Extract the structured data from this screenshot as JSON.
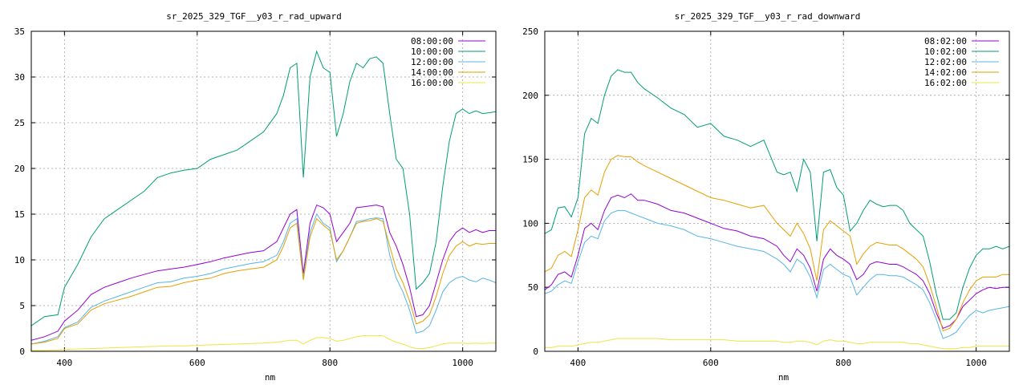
{
  "chart_data": [
    {
      "type": "line",
      "title": "sr_2025_329_TGF__y03_r_rad_upward",
      "xlabel": "nm",
      "ylabel": "",
      "xlim": [
        350,
        1050
      ],
      "ylim": [
        0,
        35
      ],
      "xticks": [
        400,
        600,
        800,
        1000
      ],
      "yticks": [
        0,
        5,
        10,
        15,
        20,
        25,
        30,
        35
      ],
      "grid": true,
      "legend_position": "top-right",
      "x": [
        350,
        370,
        390,
        400,
        420,
        440,
        460,
        480,
        500,
        520,
        540,
        560,
        580,
        600,
        620,
        640,
        660,
        680,
        700,
        720,
        730,
        740,
        750,
        760,
        770,
        780,
        790,
        800,
        810,
        820,
        830,
        840,
        850,
        860,
        870,
        880,
        890,
        900,
        910,
        920,
        930,
        940,
        950,
        960,
        970,
        980,
        990,
        1000,
        1010,
        1020,
        1030,
        1040,
        1050
      ],
      "series": [
        {
          "name": "08:00:00",
          "color": "#9400d3",
          "values": [
            1.2,
            1.6,
            2.2,
            3.3,
            4.5,
            6.2,
            7.0,
            7.5,
            8.0,
            8.4,
            8.8,
            9.0,
            9.2,
            9.5,
            9.8,
            10.2,
            10.5,
            10.8,
            11.0,
            12.0,
            13.5,
            15.0,
            15.5,
            8.5,
            14.0,
            16.0,
            15.7,
            15.0,
            12.0,
            13.0,
            14.0,
            15.7,
            15.8,
            15.9,
            16.0,
            15.8,
            13.0,
            11.5,
            9.5,
            7.0,
            3.8,
            4.0,
            5.0,
            7.5,
            10.0,
            12.0,
            13.0,
            13.5,
            13.0,
            13.3,
            13.0,
            13.2,
            13.2
          ]
        },
        {
          "name": "10:00:00",
          "color": "#009e73",
          "values": [
            2.8,
            3.8,
            4.0,
            7.0,
            9.5,
            12.5,
            14.5,
            15.5,
            16.5,
            17.5,
            19.0,
            19.5,
            19.8,
            20.0,
            21.0,
            21.5,
            22.0,
            23.0,
            24.0,
            26.0,
            28.0,
            31.0,
            31.5,
            19.0,
            30.0,
            32.8,
            31.0,
            30.5,
            23.5,
            26.0,
            29.5,
            31.5,
            31.0,
            32.0,
            32.2,
            31.5,
            26.0,
            21.0,
            20.0,
            15.0,
            6.8,
            7.5,
            8.5,
            12.0,
            18.0,
            23.0,
            26.0,
            26.5,
            26.0,
            26.3,
            26.0,
            26.1,
            26.2
          ]
        },
        {
          "name": "12:00:00",
          "color": "#56b4e9",
          "values": [
            0.8,
            1.1,
            1.6,
            2.6,
            3.2,
            4.8,
            5.5,
            6.0,
            6.5,
            7.0,
            7.5,
            7.6,
            8.0,
            8.2,
            8.5,
            9.0,
            9.3,
            9.6,
            9.8,
            10.5,
            12.0,
            14.0,
            14.5,
            8.0,
            13.0,
            15.0,
            14.0,
            13.5,
            9.8,
            11.0,
            12.5,
            14.2,
            14.3,
            14.5,
            14.6,
            14.5,
            10.5,
            8.0,
            6.5,
            4.5,
            2.0,
            2.2,
            2.8,
            4.5,
            6.5,
            7.5,
            8.0,
            8.2,
            7.8,
            7.6,
            8.0,
            7.8,
            7.5
          ]
        },
        {
          "name": "14:00:00",
          "color": "#e69f00",
          "values": [
            0.8,
            1.0,
            1.4,
            2.5,
            3.0,
            4.5,
            5.2,
            5.6,
            6.0,
            6.5,
            7.0,
            7.1,
            7.5,
            7.8,
            8.0,
            8.5,
            8.8,
            9.0,
            9.2,
            10.0,
            11.5,
            13.5,
            14.0,
            7.8,
            12.5,
            14.5,
            13.8,
            13.2,
            10.0,
            11.0,
            12.5,
            14.0,
            14.2,
            14.3,
            14.5,
            14.2,
            11.5,
            9.0,
            7.5,
            5.5,
            3.0,
            3.3,
            4.0,
            6.0,
            8.5,
            10.5,
            11.5,
            12.0,
            11.5,
            11.8,
            11.7,
            11.8,
            11.8
          ]
        },
        {
          "name": "16:00:00",
          "color": "#f0e442",
          "values": [
            0.1,
            0.1,
            0.15,
            0.2,
            0.25,
            0.3,
            0.35,
            0.4,
            0.45,
            0.5,
            0.55,
            0.6,
            0.6,
            0.65,
            0.7,
            0.75,
            0.8,
            0.85,
            0.9,
            1.0,
            1.1,
            1.2,
            1.2,
            0.8,
            1.2,
            1.5,
            1.5,
            1.4,
            1.1,
            1.2,
            1.4,
            1.6,
            1.7,
            1.7,
            1.7,
            1.7,
            1.3,
            1.0,
            0.8,
            0.5,
            0.3,
            0.3,
            0.4,
            0.6,
            0.8,
            0.9,
            0.9,
            0.9,
            0.85,
            0.9,
            0.85,
            0.9,
            0.9
          ]
        }
      ]
    },
    {
      "type": "line",
      "title": "sr_2025_329_TGF__y03_r_rad_downward",
      "xlabel": "nm",
      "ylabel": "",
      "xlim": [
        350,
        1050
      ],
      "ylim": [
        0,
        250
      ],
      "xticks": [
        400,
        600,
        800,
        1000
      ],
      "yticks": [
        0,
        50,
        100,
        150,
        200,
        250
      ],
      "grid": true,
      "legend_position": "top-right",
      "x": [
        350,
        360,
        370,
        380,
        390,
        400,
        410,
        420,
        430,
        440,
        450,
        460,
        470,
        480,
        490,
        500,
        520,
        540,
        560,
        580,
        600,
        620,
        640,
        660,
        680,
        700,
        710,
        720,
        730,
        740,
        750,
        760,
        770,
        780,
        790,
        800,
        810,
        820,
        830,
        840,
        850,
        860,
        870,
        880,
        890,
        900,
        910,
        920,
        930,
        940,
        950,
        960,
        970,
        980,
        990,
        1000,
        1010,
        1020,
        1030,
        1040,
        1050
      ],
      "series": [
        {
          "name": "08:02:00",
          "color": "#9400d3",
          "values": [
            48,
            52,
            60,
            62,
            58,
            75,
            96,
            100,
            95,
            110,
            120,
            122,
            120,
            123,
            118,
            118,
            115,
            110,
            108,
            104,
            100,
            96,
            94,
            90,
            88,
            82,
            75,
            70,
            80,
            75,
            65,
            47,
            72,
            80,
            75,
            72,
            68,
            56,
            60,
            68,
            70,
            69,
            68,
            68,
            66,
            63,
            60,
            55,
            45,
            30,
            18,
            20,
            25,
            35,
            40,
            45,
            48,
            50,
            49,
            50,
            50
          ]
        },
        {
          "name": "10:02:00",
          "color": "#009e73",
          "values": [
            92,
            95,
            112,
            113,
            105,
            120,
            170,
            182,
            178,
            200,
            215,
            220,
            218,
            218,
            210,
            205,
            198,
            190,
            185,
            175,
            178,
            168,
            165,
            160,
            165,
            140,
            138,
            140,
            125,
            150,
            140,
            86,
            140,
            142,
            128,
            122,
            94,
            100,
            110,
            118,
            115,
            113,
            114,
            114,
            110,
            100,
            95,
            90,
            70,
            45,
            25,
            25,
            30,
            50,
            65,
            75,
            80,
            80,
            82,
            80,
            82
          ]
        },
        {
          "name": "12:02:00",
          "color": "#56b4e9",
          "values": [
            45,
            47,
            52,
            55,
            53,
            70,
            85,
            90,
            88,
            102,
            108,
            110,
            110,
            108,
            106,
            104,
            100,
            98,
            95,
            90,
            88,
            85,
            82,
            80,
            78,
            72,
            68,
            62,
            72,
            68,
            58,
            42,
            64,
            68,
            64,
            60,
            58,
            44,
            50,
            56,
            60,
            60,
            59,
            59,
            58,
            55,
            52,
            48,
            38,
            25,
            10,
            12,
            15,
            22,
            28,
            32,
            30,
            32,
            33,
            34,
            35
          ]
        },
        {
          "name": "14:02:00",
          "color": "#e69f00",
          "values": [
            62,
            65,
            75,
            78,
            74,
            95,
            120,
            126,
            122,
            140,
            150,
            153,
            152,
            152,
            148,
            145,
            140,
            135,
            130,
            125,
            120,
            118,
            115,
            112,
            114,
            100,
            95,
            90,
            100,
            92,
            80,
            55,
            95,
            102,
            98,
            94,
            90,
            68,
            76,
            82,
            85,
            84,
            83,
            83,
            80,
            76,
            72,
            66,
            52,
            35,
            16,
            18,
            25,
            38,
            48,
            55,
            58,
            58,
            58,
            60,
            60
          ]
        },
        {
          "name": "16:02:00",
          "color": "#f0e442",
          "values": [
            3,
            3,
            4,
            4,
            4,
            5,
            6,
            7,
            7,
            8,
            9,
            10,
            10,
            10,
            10,
            10,
            10,
            9,
            9,
            9,
            9,
            9,
            8,
            8,
            8,
            8,
            7,
            7,
            8,
            8,
            7,
            5,
            8,
            9,
            8,
            8,
            7,
            6,
            6,
            7,
            7,
            7,
            7,
            7,
            7,
            6,
            6,
            5,
            4,
            3,
            2,
            2,
            2,
            3,
            3,
            4,
            4,
            4,
            4,
            4,
            4
          ]
        }
      ]
    }
  ]
}
